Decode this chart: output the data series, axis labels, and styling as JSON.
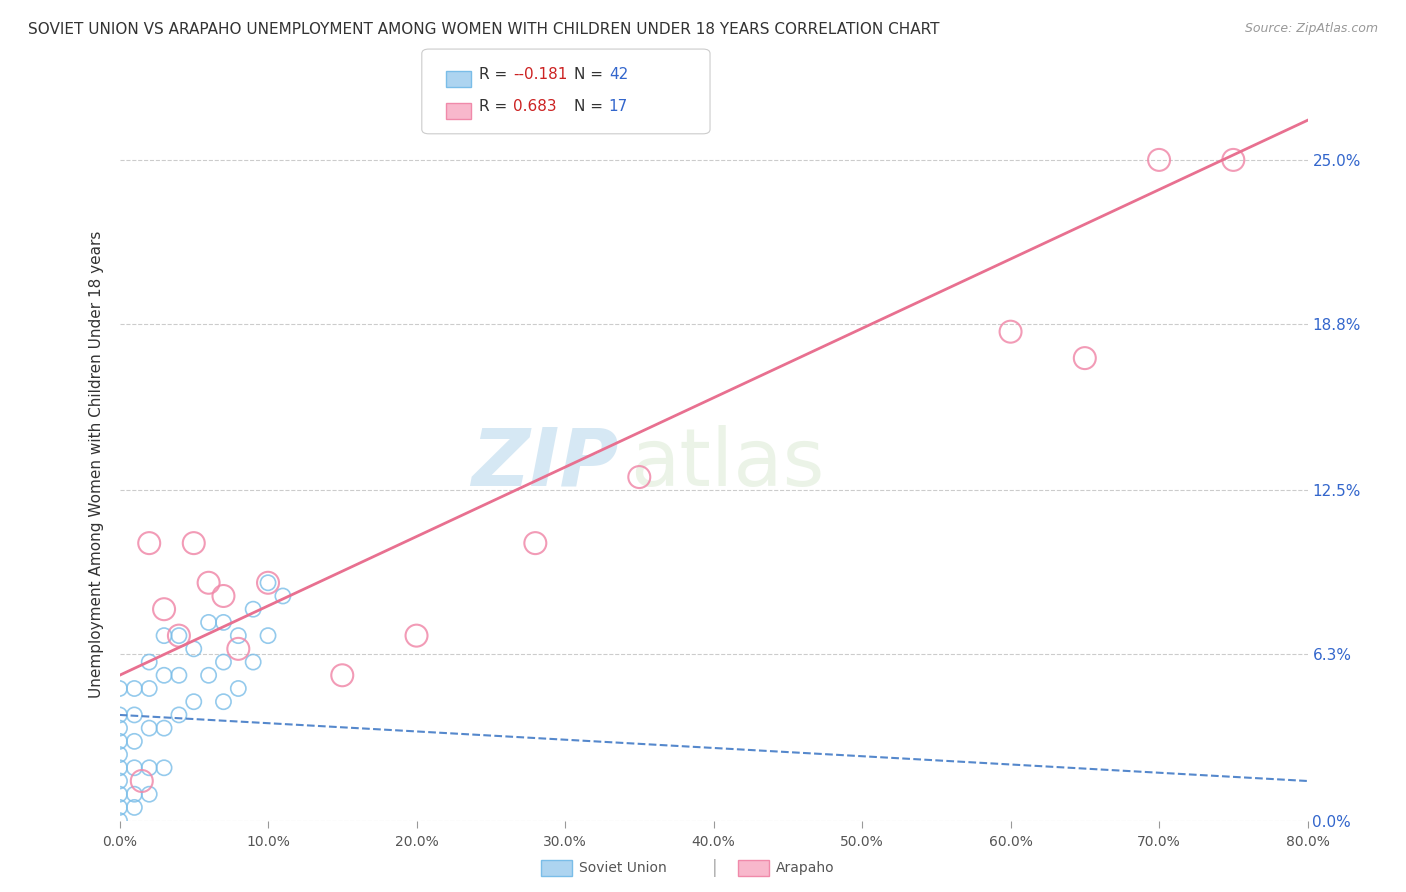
{
  "title": "SOVIET UNION VS ARAPAHO UNEMPLOYMENT AMONG WOMEN WITH CHILDREN UNDER 18 YEARS CORRELATION CHART",
  "source": "Source: ZipAtlas.com",
  "ylabel": "Unemployment Among Women with Children Under 18 years",
  "xlim": [
    0.0,
    80.0
  ],
  "ylim": [
    0.0,
    27.0
  ],
  "xlabel_ticks": [
    0.0,
    10.0,
    20.0,
    30.0,
    40.0,
    50.0,
    60.0,
    70.0,
    80.0
  ],
  "ylabel_ticks": [
    0.0,
    6.3,
    12.5,
    18.8,
    25.0
  ],
  "legend_r_soviet": "-0.181",
  "legend_n_soviet": "42",
  "legend_r_arapaho": "0.683",
  "legend_n_arapaho": "17",
  "soviet_color": "#7abde8",
  "soviet_face_color": "#add4f0",
  "arapaho_color": "#f08aaa",
  "arapaho_face_color": "#f8b8cc",
  "soviet_line_color": "#5588cc",
  "arapaho_line_color": "#e87090",
  "watermark_zip": "ZIP",
  "watermark_atlas": "atlas",
  "background_color": "#ffffff",
  "grid_color": "#cccccc",
  "soviet_x": [
    0.0,
    0.0,
    0.0,
    0.0,
    0.0,
    0.0,
    0.0,
    0.0,
    0.0,
    0.0,
    1.0,
    1.0,
    1.0,
    1.0,
    1.0,
    1.0,
    2.0,
    2.0,
    2.0,
    2.0,
    2.0,
    3.0,
    3.0,
    3.0,
    3.0,
    4.0,
    4.0,
    4.0,
    5.0,
    5.0,
    6.0,
    6.0,
    7.0,
    7.0,
    7.0,
    8.0,
    8.0,
    9.0,
    9.0,
    10.0,
    10.0,
    11.0
  ],
  "soviet_y": [
    0.0,
    0.5,
    1.0,
    1.5,
    2.0,
    2.5,
    3.0,
    3.5,
    4.0,
    5.0,
    0.5,
    1.0,
    2.0,
    3.0,
    4.0,
    5.0,
    1.0,
    2.0,
    3.5,
    5.0,
    6.0,
    2.0,
    3.5,
    5.5,
    7.0,
    4.0,
    5.5,
    7.0,
    4.5,
    6.5,
    5.5,
    7.5,
    4.5,
    6.0,
    7.5,
    5.0,
    7.0,
    6.0,
    8.0,
    7.0,
    9.0,
    8.5
  ],
  "arapaho_x": [
    1.5,
    2.0,
    3.0,
    4.0,
    5.0,
    6.0,
    7.0,
    8.0,
    10.0,
    15.0,
    20.0,
    28.0,
    35.0,
    60.0,
    65.0,
    70.0,
    75.0
  ],
  "arapaho_y": [
    1.5,
    10.5,
    8.0,
    7.0,
    10.5,
    9.0,
    8.5,
    6.5,
    9.0,
    5.5,
    7.0,
    10.5,
    13.0,
    18.5,
    17.5,
    25.0,
    25.0
  ],
  "soviet_trend_x": [
    0.0,
    80.0
  ],
  "soviet_trend_y": [
    4.0,
    1.5
  ],
  "arapaho_trend_x": [
    0.0,
    80.0
  ],
  "arapaho_trend_y": [
    5.5,
    26.5
  ]
}
